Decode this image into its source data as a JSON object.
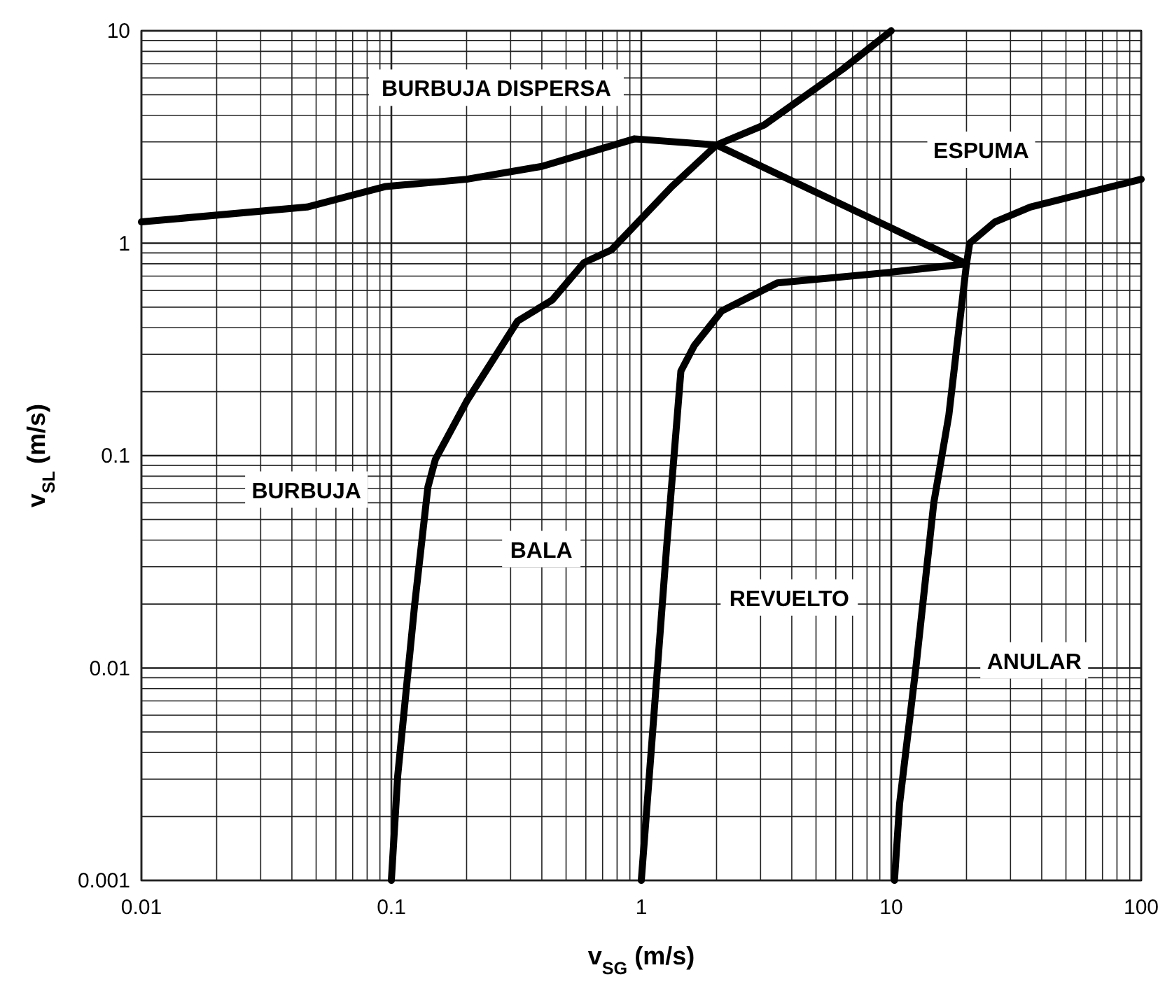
{
  "chart_data": {
    "type": "line",
    "xlabel": "v$_{SG}$ (m/s)",
    "ylabel": "v$_{SL}$ (m/s)",
    "log": "xy",
    "grid": true,
    "marker": "none",
    "line_style": "solid",
    "xlim": [
      0.01,
      100
    ],
    "ylim": [
      0.001,
      10
    ],
    "xticks": [
      0.01,
      {
        "value": 0.02,
        "label": null
      },
      {
        "value": 0.03,
        "label": null
      },
      {
        "value": 0.04,
        "label": null
      },
      {
        "value": 0.05,
        "label": null
      },
      {
        "value": 0.06,
        "label": null
      },
      {
        "value": 0.07,
        "label": null
      },
      {
        "value": 0.08,
        "label": null
      },
      {
        "value": 0.09,
        "label": null
      },
      0.1,
      {
        "value": 0.2,
        "label": null
      },
      {
        "value": 0.3,
        "label": null
      },
      {
        "value": 0.4,
        "label": null
      },
      {
        "value": 0.5,
        "label": null
      },
      {
        "value": 0.6,
        "label": null
      },
      {
        "value": 0.7,
        "label": null
      },
      {
        "value": 0.8,
        "label": null
      },
      {
        "value": 0.9,
        "label": null
      },
      1,
      {
        "value": 2,
        "label": null
      },
      {
        "value": 3,
        "label": null
      },
      {
        "value": 4,
        "label": null
      },
      {
        "value": 5,
        "label": null
      },
      {
        "value": 6,
        "label": null
      },
      {
        "value": 7,
        "label": null
      },
      {
        "value": 8,
        "label": null
      },
      {
        "value": 9,
        "label": null
      },
      10,
      {
        "value": 20,
        "label": null
      },
      {
        "value": 30,
        "label": null
      },
      {
        "value": 40,
        "label": null
      },
      {
        "value": 50,
        "label": null
      },
      {
        "value": 60,
        "label": null
      },
      {
        "value": 70,
        "label": null
      },
      {
        "value": 80,
        "label": null
      },
      {
        "value": 90,
        "label": null
      },
      100
    ],
    "yticks": [
      0.001,
      {
        "value": 0.002,
        "label": null
      },
      {
        "value": 0.003,
        "label": null
      },
      {
        "value": 0.004,
        "label": null
      },
      {
        "value": 0.005,
        "label": null
      },
      {
        "value": 0.006,
        "label": null
      },
      {
        "value": 0.007,
        "label": null
      },
      {
        "value": 0.008,
        "label": null
      },
      {
        "value": 0.009,
        "label": null
      },
      0.01,
      {
        "value": 0.02,
        "label": null
      },
      {
        "value": 0.03,
        "label": null
      },
      {
        "value": 0.04,
        "label": null
      },
      {
        "value": 0.05,
        "label": null
      },
      {
        "value": 0.06,
        "label": null
      },
      {
        "value": 0.07,
        "label": null
      },
      {
        "value": 0.08,
        "label": null
      },
      {
        "value": 0.09,
        "label": null
      },
      0.1,
      {
        "value": 0.2,
        "label": null
      },
      {
        "value": 0.3,
        "label": null
      },
      {
        "value": 0.4,
        "label": null
      },
      {
        "value": 0.5,
        "label": null
      },
      {
        "value": 0.6,
        "label": null
      },
      {
        "value": 0.7,
        "label": null
      },
      {
        "value": 0.8,
        "label": null
      },
      {
        "value": 0.9,
        "label": null
      },
      1,
      {
        "value": 2,
        "label": null
      },
      {
        "value": 3,
        "label": null
      },
      {
        "value": 4,
        "label": null
      },
      {
        "value": 5,
        "label": null
      },
      {
        "value": 6,
        "label": null
      },
      {
        "value": 7,
        "label": null
      },
      {
        "value": 8,
        "label": null
      },
      {
        "value": 9,
        "label": null
      },
      10
    ],
    "series": [
      {
        "color": "#000000",
        "x": [
          0.01,
          0.046,
          0.095,
          0.2,
          0.4,
          0.94,
          2,
          20
        ],
        "values": [
          1.26,
          1.48,
          1.85,
          2.0,
          2.3,
          3.1,
          2.9,
          0.8
        ]
      },
      {
        "color": "#000000",
        "x": [
          0.1,
          0.106,
          0.124,
          0.14,
          0.15,
          0.2,
          0.32,
          0.44,
          0.59,
          0.76,
          1.32,
          2,
          3.1,
          6.4,
          10
        ],
        "values": [
          0.001,
          0.0031,
          0.02,
          0.071,
          0.096,
          0.18,
          0.43,
          0.54,
          0.81,
          0.93,
          1.84,
          2.9,
          3.6,
          6.6,
          10
        ]
      },
      {
        "color": "#000000",
        "x": [
          1,
          1.11,
          1.26,
          1.44,
          1.63,
          2.1,
          3.5,
          8.9,
          20
        ],
        "values": [
          0.001,
          0.005,
          0.036,
          0.25,
          0.33,
          0.48,
          0.65,
          0.72,
          0.8
        ]
      },
      {
        "color": "#000000",
        "x": [
          10.3,
          10.8,
          12.6,
          14.8,
          17,
          20,
          20.6,
          26,
          36,
          100
        ],
        "values": [
          0.001,
          0.0023,
          0.0105,
          0.06,
          0.155,
          0.8,
          1.0,
          1.26,
          1.48,
          2.0
        ]
      }
    ],
    "annotations": [
      "BURBUJA DISPERSA",
      "ESPUMA",
      "BURBUJA",
      "BALA",
      "REVUELTO",
      "ANULAR"
    ]
  }
}
